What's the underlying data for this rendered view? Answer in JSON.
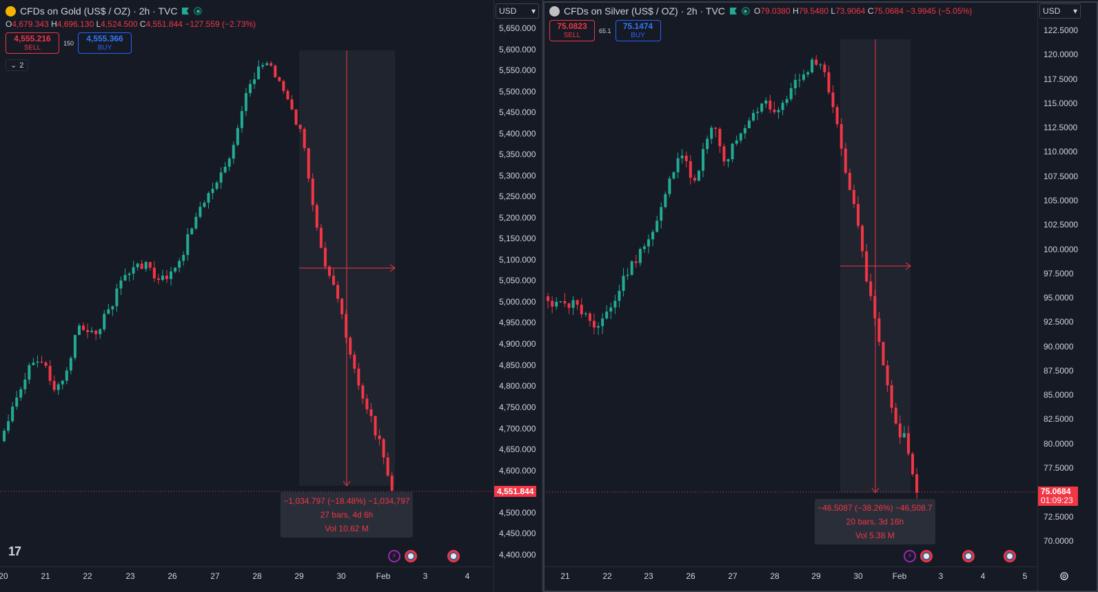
{
  "left_chart": {
    "title": "CFDs on Gold (US$ / OZ) · 2h · TVC",
    "ohlc": {
      "o_label": "O",
      "o": "4,679.343",
      "h_label": "H",
      "h": "4,696.130",
      "l_label": "L",
      "l": "4,524.500",
      "c_label": "C",
      "c": "4,551.844",
      "change": "−127.559 (−2.73%)"
    },
    "sell": {
      "price": "4,555.216",
      "label": "SELL"
    },
    "buy": {
      "price": "4,555.366",
      "label": "BUY"
    },
    "spread": "150",
    "collapse_count": "2",
    "currency": "USD",
    "price_ticks": [
      "5,650.000",
      "5,600.000",
      "5,550.000",
      "5,500.000",
      "5,450.000",
      "5,400.000",
      "5,350.000",
      "5,300.000",
      "5,250.000",
      "5,200.000",
      "5,150.000",
      "5,100.000",
      "5,050.000",
      "5,000.000",
      "4,950.000",
      "4,900.000",
      "4,850.000",
      "4,800.000",
      "4,750.000",
      "4,700.000",
      "4,650.000",
      "4,600.000",
      "4,500.000",
      "4,450.000",
      "4,400.000"
    ],
    "current_price": "4,551.844",
    "time_ticks": [
      "20",
      "21",
      "22",
      "23",
      "26",
      "27",
      "28",
      "29",
      "30",
      "Feb",
      "3",
      "4"
    ],
    "measure": {
      "line1": "−1,034.797 (−18.48%) −1,034,797",
      "line2": "27 bars, 4d 6h",
      "line3": "Vol 10.62 M"
    },
    "icon_colors": {
      "symbol": "#f5b400",
      "flag": "#22ab94"
    }
  },
  "right_chart": {
    "title": "CFDs on Silver (US$ / OZ) · 2h · TVC",
    "ohlc": {
      "o_label": "O",
      "o": "79.0380",
      "h_label": "H",
      "h": "79.5480",
      "l_label": "L",
      "l": "73.9064",
      "c_label": "C",
      "c": "75.0684",
      "change": "−3.9945 (−5.05%)"
    },
    "sell": {
      "price": "75.0823",
      "label": "SELL"
    },
    "buy": {
      "price": "75.1474",
      "label": "BUY"
    },
    "spread": "65.1",
    "currency": "USD",
    "price_ticks": [
      "122.5000",
      "120.0000",
      "117.5000",
      "115.0000",
      "112.5000",
      "110.0000",
      "107.5000",
      "105.0000",
      "102.5000",
      "100.0000",
      "97.5000",
      "95.0000",
      "92.5000",
      "90.0000",
      "87.5000",
      "85.0000",
      "82.5000",
      "80.0000",
      "77.5000",
      "72.5000",
      "70.0000"
    ],
    "current_price": "75.0684",
    "countdown": "01:09:23",
    "time_ticks": [
      "21",
      "22",
      "23",
      "26",
      "27",
      "28",
      "29",
      "30",
      "Feb",
      "3",
      "4",
      "5"
    ],
    "measure": {
      "line1": "−46.5087 (−38.26%) −46,508.7",
      "line2": "20 bars, 3d 16h",
      "line3": "Vol 5.38 M"
    },
    "icon_colors": {
      "symbol": "#c0c0c0",
      "flag": "#22ab94"
    }
  },
  "colors": {
    "up": "#22ab94",
    "down": "#f23645",
    "bg": "#161a25",
    "grid": "#2a2e39"
  }
}
